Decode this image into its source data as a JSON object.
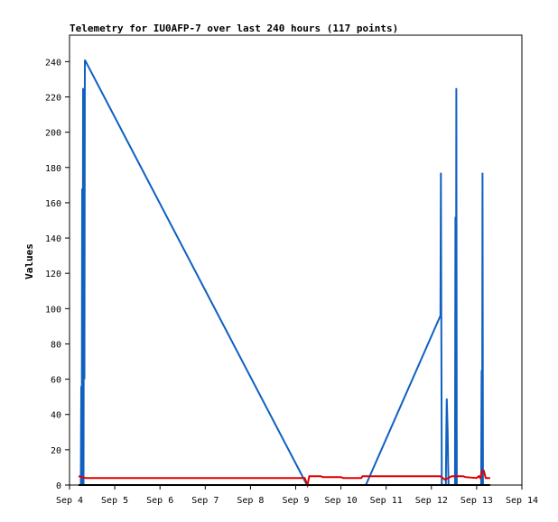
{
  "chart_data": {
    "type": "line",
    "title": "Telemetry for IU0AFP-7 over last 240 hours (117 points)",
    "xlabel": "",
    "ylabel": "Values",
    "xlim": [
      0,
      10
    ],
    "ylim": [
      0,
      255
    ],
    "x_ticks": [
      {
        "x": 0,
        "label": "Sep 4"
      },
      {
        "x": 1,
        "label": "Sep 5"
      },
      {
        "x": 2,
        "label": "Sep 6"
      },
      {
        "x": 3,
        "label": "Sep 7"
      },
      {
        "x": 4,
        "label": "Sep 8"
      },
      {
        "x": 5,
        "label": "Sep 9"
      },
      {
        "x": 6,
        "label": "Sep 10"
      },
      {
        "x": 7,
        "label": "Sep 11"
      },
      {
        "x": 8,
        "label": "Sep 12"
      },
      {
        "x": 9,
        "label": "Sep 13"
      },
      {
        "x": 10,
        "label": "Sep 14"
      }
    ],
    "y_ticks": [
      0,
      20,
      40,
      60,
      80,
      100,
      120,
      140,
      160,
      180,
      200,
      220,
      240
    ],
    "grid": false,
    "legend": "none",
    "series": [
      {
        "color": "#1060c0",
        "points": [
          [
            0.25,
            0
          ],
          [
            0.26,
            56
          ],
          [
            0.27,
            0
          ],
          [
            0.28,
            168
          ],
          [
            0.29,
            0
          ],
          [
            0.3,
            225
          ],
          [
            0.31,
            0
          ],
          [
            0.32,
            180
          ],
          [
            0.33,
            60
          ],
          [
            0.34,
            241
          ],
          [
            5.25,
            0
          ],
          [
            6.55,
            0
          ],
          [
            8.2,
            96
          ],
          [
            8.21,
            177
          ],
          [
            8.22,
            88
          ],
          [
            8.23,
            0
          ],
          [
            8.32,
            0
          ],
          [
            8.33,
            30
          ],
          [
            8.34,
            49
          ],
          [
            8.35,
            40
          ],
          [
            8.36,
            30
          ],
          [
            8.37,
            12
          ],
          [
            8.38,
            0
          ],
          [
            8.52,
            0
          ],
          [
            8.53,
            152
          ],
          [
            8.54,
            0
          ],
          [
            8.55,
            225
          ],
          [
            8.56,
            0
          ],
          [
            9.1,
            0
          ],
          [
            9.11,
            65
          ],
          [
            9.12,
            0
          ],
          [
            9.13,
            177
          ],
          [
            9.14,
            0
          ]
        ]
      },
      {
        "color": "#e00000",
        "points": [
          [
            0.2,
            5
          ],
          [
            0.35,
            4
          ],
          [
            5.2,
            4
          ],
          [
            5.26,
            0
          ],
          [
            5.3,
            5
          ],
          [
            5.55,
            5
          ],
          [
            5.6,
            4.5
          ],
          [
            6.0,
            4.5
          ],
          [
            6.05,
            4
          ],
          [
            6.45,
            4
          ],
          [
            6.48,
            5
          ],
          [
            8.2,
            5
          ],
          [
            8.3,
            3
          ],
          [
            8.45,
            5
          ],
          [
            8.7,
            5
          ],
          [
            8.75,
            4.5
          ],
          [
            9.0,
            4
          ],
          [
            9.05,
            5
          ],
          [
            9.08,
            4
          ],
          [
            9.12,
            8
          ],
          [
            9.16,
            8
          ],
          [
            9.2,
            4
          ],
          [
            9.27,
            4
          ],
          [
            9.3,
            4
          ]
        ]
      },
      {
        "color": "#000000",
        "points": [
          [
            0.2,
            0
          ],
          [
            9.3,
            0
          ]
        ]
      }
    ]
  }
}
